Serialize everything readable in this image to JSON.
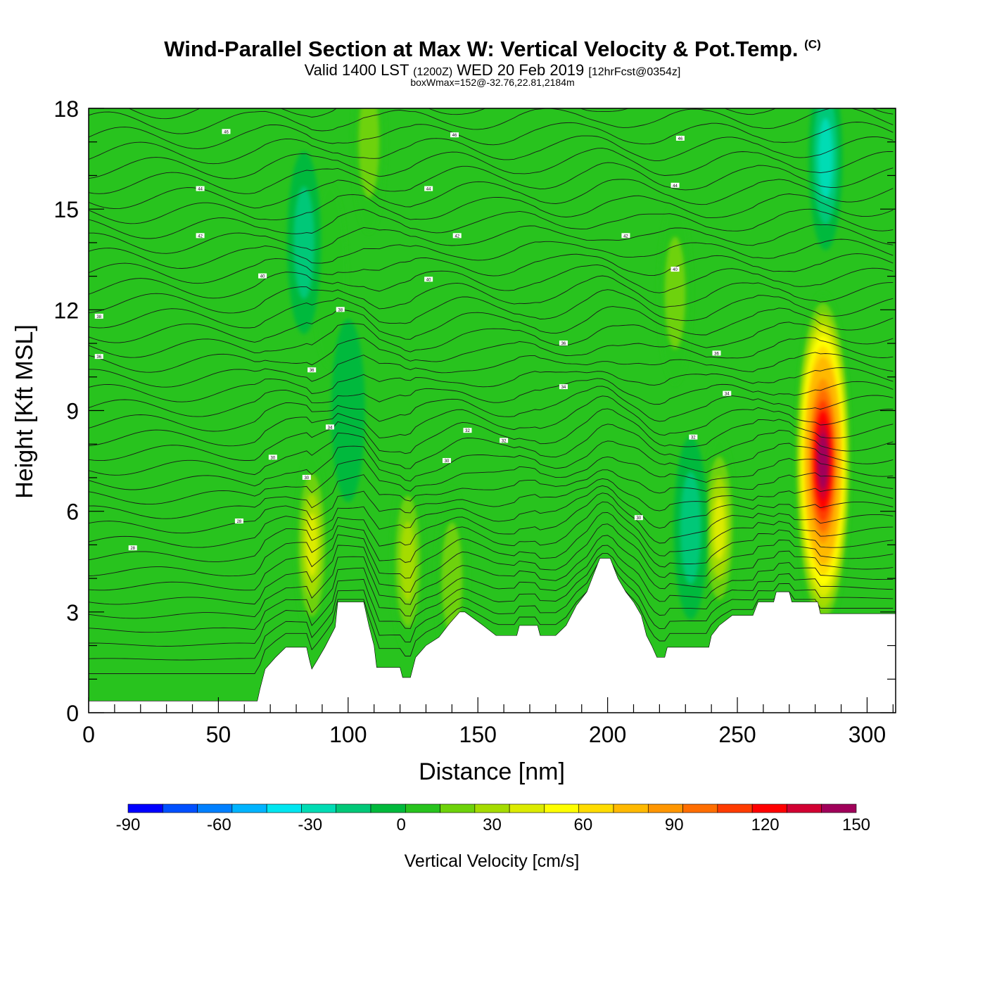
{
  "header": {
    "title_main": "Wind-Parallel Section at Max W: Vertical Velocity & Pot.Temp.",
    "title_copyright": "(C)",
    "valid_prefix": "Valid 1400 LST",
    "valid_utc": "(1200Z)",
    "valid_date": "WED 20 Feb 2019",
    "valid_forecast": "[12hrFcst@0354z]",
    "box_info": "boxWmax=152@-32.76,22.81,2184m"
  },
  "chart_data": {
    "type": "heatmap",
    "xlabel": "Distance [nm]",
    "ylabel": "Height [Kft MSL]",
    "xlim": [
      0,
      311
    ],
    "ylim": [
      0,
      18
    ],
    "x_ticks": [
      0,
      50,
      100,
      150,
      200,
      250,
      300
    ],
    "y_ticks": [
      0,
      3,
      6,
      9,
      12,
      15,
      18
    ],
    "colorbar": {
      "label": "Vertical Velocity [cm/s]",
      "min": -90,
      "max": 150,
      "tick_values": [
        -90,
        -60,
        -30,
        0,
        30,
        60,
        90,
        120,
        150
      ],
      "colors": [
        "#0000ff",
        "#0050ff",
        "#0080ff",
        "#00b4ff",
        "#00e6f0",
        "#00dcb4",
        "#00c878",
        "#00b93c",
        "#28c31e",
        "#6ed20a",
        "#a5dc00",
        "#dceb00",
        "#ffff00",
        "#ffdc00",
        "#ffb900",
        "#ff9600",
        "#ff6e00",
        "#ff3c00",
        "#ff0000",
        "#d20032",
        "#a0005a"
      ]
    },
    "terrain": [
      {
        "x": 0,
        "y": 0.35
      },
      {
        "x": 65,
        "y": 0.35
      },
      {
        "x": 66,
        "y": 0.7
      },
      {
        "x": 68,
        "y": 1.3
      },
      {
        "x": 72,
        "y": 1.65
      },
      {
        "x": 76,
        "y": 1.95
      },
      {
        "x": 84,
        "y": 1.95
      },
      {
        "x": 85,
        "y": 1.6
      },
      {
        "x": 86,
        "y": 1.3
      },
      {
        "x": 88,
        "y": 1.55
      },
      {
        "x": 91,
        "y": 1.95
      },
      {
        "x": 95,
        "y": 2.55
      },
      {
        "x": 96,
        "y": 3.3
      },
      {
        "x": 106,
        "y": 3.3
      },
      {
        "x": 108,
        "y": 2.6
      },
      {
        "x": 110,
        "y": 2.0
      },
      {
        "x": 111,
        "y": 1.35
      },
      {
        "x": 120,
        "y": 1.35
      },
      {
        "x": 121,
        "y": 1.05
      },
      {
        "x": 124,
        "y": 1.05
      },
      {
        "x": 126,
        "y": 1.65
      },
      {
        "x": 130,
        "y": 2.0
      },
      {
        "x": 135,
        "y": 2.25
      },
      {
        "x": 139,
        "y": 2.65
      },
      {
        "x": 143,
        "y": 3.0
      },
      {
        "x": 145,
        "y": 3.0
      },
      {
        "x": 152,
        "y": 2.6
      },
      {
        "x": 157,
        "y": 2.3
      },
      {
        "x": 165,
        "y": 2.3
      },
      {
        "x": 166,
        "y": 2.6
      },
      {
        "x": 173,
        "y": 2.6
      },
      {
        "x": 174,
        "y": 2.3
      },
      {
        "x": 180,
        "y": 2.3
      },
      {
        "x": 184,
        "y": 2.6
      },
      {
        "x": 188,
        "y": 3.2
      },
      {
        "x": 192,
        "y": 3.6
      },
      {
        "x": 195,
        "y": 4.2
      },
      {
        "x": 197,
        "y": 4.6
      },
      {
        "x": 201,
        "y": 4.6
      },
      {
        "x": 204,
        "y": 4.0
      },
      {
        "x": 207,
        "y": 3.6
      },
      {
        "x": 210,
        "y": 3.3
      },
      {
        "x": 213,
        "y": 2.9
      },
      {
        "x": 215,
        "y": 2.3
      },
      {
        "x": 217,
        "y": 2.0
      },
      {
        "x": 219,
        "y": 1.65
      },
      {
        "x": 222,
        "y": 1.65
      },
      {
        "x": 223,
        "y": 1.95
      },
      {
        "x": 239,
        "y": 1.95
      },
      {
        "x": 240,
        "y": 2.3
      },
      {
        "x": 243,
        "y": 2.6
      },
      {
        "x": 248,
        "y": 2.9
      },
      {
        "x": 256,
        "y": 2.9
      },
      {
        "x": 258,
        "y": 3.3
      },
      {
        "x": 264,
        "y": 3.3
      },
      {
        "x": 265,
        "y": 3.6
      },
      {
        "x": 270,
        "y": 3.6
      },
      {
        "x": 271,
        "y": 3.3
      },
      {
        "x": 281,
        "y": 3.3
      },
      {
        "x": 282,
        "y": 2.95
      },
      {
        "x": 311,
        "y": 2.95
      }
    ],
    "updraft_features": [
      {
        "x": 283,
        "y": 7.5,
        "w_max": 152
      },
      {
        "x": 243,
        "y": 5.5,
        "w_max": 40
      },
      {
        "x": 86,
        "y": 5.0,
        "w_max": 40
      },
      {
        "x": 123,
        "y": 4.5,
        "w_max": 30
      },
      {
        "x": 140,
        "y": 4.0,
        "w_max": 25
      },
      {
        "x": 226,
        "y": 12.5,
        "w_max": 25
      },
      {
        "x": 108,
        "y": 17.0,
        "w_max": 25
      },
      {
        "x": 93,
        "y": 13.0,
        "w_max": 15
      }
    ],
    "downdraft_features": [
      {
        "x": 284,
        "y": 16.5,
        "w_min": -35
      },
      {
        "x": 83,
        "y": 14.0,
        "w_min": -20
      },
      {
        "x": 100,
        "y": 9.0,
        "w_min": -15
      },
      {
        "x": 232,
        "y": 5.5,
        "w_min": -20
      }
    ],
    "contour_labels": [
      {
        "x": 53,
        "y": 17.3,
        "text": "46"
      },
      {
        "x": 141,
        "y": 17.2,
        "text": "46"
      },
      {
        "x": 228,
        "y": 17.1,
        "text": "46"
      },
      {
        "x": 43,
        "y": 15.6,
        "text": "44"
      },
      {
        "x": 131,
        "y": 15.6,
        "text": "44"
      },
      {
        "x": 226,
        "y": 15.7,
        "text": "44"
      },
      {
        "x": 43,
        "y": 14.2,
        "text": "42"
      },
      {
        "x": 142,
        "y": 14.2,
        "text": "42"
      },
      {
        "x": 207,
        "y": 14.2,
        "text": "42"
      },
      {
        "x": 67,
        "y": 13.0,
        "text": "40"
      },
      {
        "x": 131,
        "y": 12.9,
        "text": "40"
      },
      {
        "x": 226,
        "y": 13.2,
        "text": "40"
      },
      {
        "x": 4,
        "y": 11.8,
        "text": "38"
      },
      {
        "x": 97,
        "y": 12.0,
        "text": "38"
      },
      {
        "x": 4,
        "y": 10.6,
        "text": "36"
      },
      {
        "x": 183,
        "y": 11.0,
        "text": "36"
      },
      {
        "x": 86,
        "y": 10.2,
        "text": "36"
      },
      {
        "x": 242,
        "y": 10.7,
        "text": "36"
      },
      {
        "x": 183,
        "y": 9.7,
        "text": "34"
      },
      {
        "x": 246,
        "y": 9.5,
        "text": "34"
      },
      {
        "x": 93,
        "y": 8.5,
        "text": "34"
      },
      {
        "x": 146,
        "y": 8.4,
        "text": "32"
      },
      {
        "x": 160,
        "y": 8.1,
        "text": "32"
      },
      {
        "x": 233,
        "y": 8.2,
        "text": "32"
      },
      {
        "x": 71,
        "y": 7.6,
        "text": "30"
      },
      {
        "x": 138,
        "y": 7.5,
        "text": "30"
      },
      {
        "x": 84,
        "y": 7.0,
        "text": "30"
      },
      {
        "x": 58,
        "y": 5.7,
        "text": "28"
      },
      {
        "x": 212,
        "y": 5.8,
        "text": "30"
      },
      {
        "x": 17,
        "y": 4.9,
        "text": "28"
      }
    ]
  }
}
